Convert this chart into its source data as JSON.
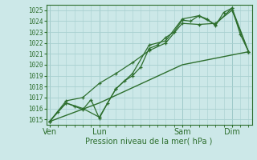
{
  "xlabel": "Pression niveau de la mer( hPa )",
  "bg_color": "#cce8e8",
  "grid_color": "#a8d0d0",
  "line_color": "#2d6e2d",
  "vline_color": "#7aabab",
  "ylim": [
    1014.5,
    1025.5
  ],
  "yticks": [
    1015,
    1016,
    1017,
    1018,
    1019,
    1020,
    1021,
    1022,
    1023,
    1024,
    1025
  ],
  "xtick_labels": [
    "Ven",
    "Lun",
    "Sam",
    "Dim"
  ],
  "xtick_positions": [
    0,
    30,
    80,
    110
  ],
  "xlim": [
    -2,
    122
  ],
  "vline_positions": [
    0,
    30,
    80,
    110
  ],
  "series1_x": [
    0,
    5,
    10,
    15,
    20,
    25,
    30,
    35,
    40,
    45,
    50,
    55,
    60,
    65,
    70,
    75,
    80,
    85,
    90,
    95,
    100,
    105,
    110,
    115,
    120
  ],
  "series1_y": [
    1014.8,
    1015.7,
    1016.5,
    1016.2,
    1015.9,
    1016.8,
    1015.1,
    1016.5,
    1017.8,
    1018.5,
    1019.0,
    1019.8,
    1021.5,
    1021.8,
    1022.5,
    1023.0,
    1024.1,
    1024.0,
    1024.5,
    1024.2,
    1023.6,
    1024.8,
    1025.2,
    1022.8,
    1021.2
  ],
  "series2_x": [
    0,
    10,
    20,
    30,
    40,
    50,
    60,
    70,
    80,
    90,
    100,
    110,
    120
  ],
  "series2_y": [
    1014.8,
    1016.5,
    1016.0,
    1015.2,
    1017.8,
    1019.2,
    1021.8,
    1022.2,
    1024.2,
    1024.5,
    1023.7,
    1025.2,
    1021.2
  ],
  "series3_x": [
    0,
    10,
    20,
    30,
    40,
    50,
    60,
    70,
    80,
    90,
    100,
    110,
    120
  ],
  "series3_y": [
    1014.8,
    1016.7,
    1017.0,
    1018.3,
    1019.2,
    1020.2,
    1021.3,
    1022.0,
    1023.8,
    1023.7,
    1023.8,
    1025.0,
    1021.2
  ],
  "series4_x": [
    0,
    30,
    80,
    120
  ],
  "series4_y": [
    1014.8,
    1016.5,
    1020.0,
    1021.2
  ]
}
